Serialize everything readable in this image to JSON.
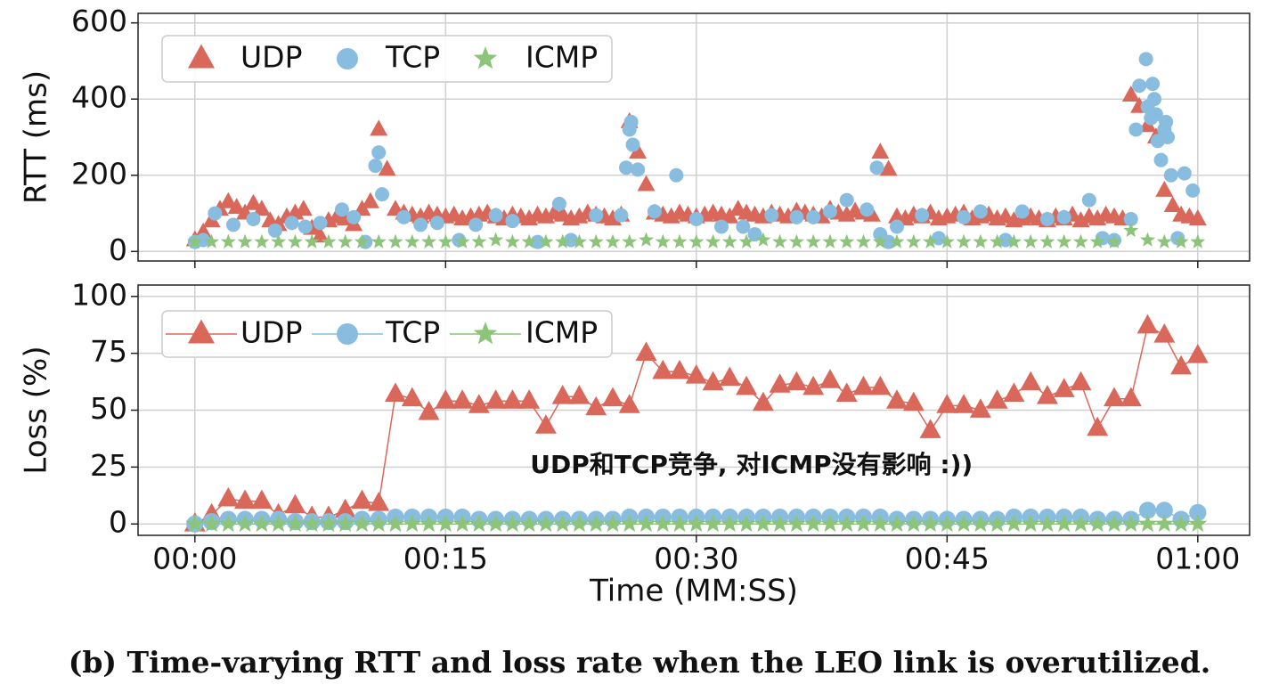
{
  "caption": "(b) Time-varying RTT and loss rate when the LEO link is overutilized.",
  "chart_data": [
    {
      "type": "scatter",
      "ylabel": "RTT (ms)",
      "xlim": [
        -3.4,
        63.1
      ],
      "xticks": [
        0,
        15,
        30,
        45,
        60
      ],
      "ylim": [
        -25,
        625
      ],
      "yticks": [
        0,
        200,
        400,
        600
      ],
      "grid": true,
      "legend": "upper left",
      "series": [
        {
          "name": "UDP",
          "color": "#d9685b",
          "marker": "triangle",
          "x": [
            0,
            0.5,
            1,
            1.5,
            2,
            2.5,
            3,
            3.5,
            4,
            4.5,
            5,
            5.5,
            6,
            6.5,
            7,
            7.5,
            8,
            8.5,
            9,
            9.5,
            10,
            10.5,
            11,
            11.5,
            12,
            12.5,
            13,
            13.5,
            14,
            14.5,
            15,
            15.5,
            16,
            16.5,
            17,
            17.5,
            18,
            18.5,
            19,
            19.5,
            20,
            20.5,
            21,
            21.5,
            22,
            22.5,
            23,
            23.5,
            24,
            24.5,
            25,
            25.5,
            26,
            26.5,
            27,
            27.5,
            28,
            28.5,
            29,
            29.5,
            30,
            30.5,
            31,
            31.5,
            32,
            32.5,
            33,
            33.5,
            34,
            34.5,
            35,
            35.5,
            36,
            36.5,
            37,
            37.5,
            38,
            38.5,
            39,
            39.5,
            40,
            40.5,
            41,
            41.5,
            42,
            42.5,
            43,
            43.5,
            44,
            44.5,
            45,
            45.5,
            46,
            46.5,
            47,
            47.5,
            48,
            48.5,
            49,
            49.5,
            50,
            50.5,
            51,
            51.5,
            52,
            52.5,
            53,
            53.5,
            54,
            54.5,
            55,
            55.5,
            56,
            56.5,
            57,
            57.5,
            58,
            58.5,
            59,
            59.5,
            60
          ],
          "values": [
            30,
            50,
            80,
            110,
            130,
            115,
            100,
            125,
            110,
            80,
            70,
            90,
            100,
            110,
            60,
            40,
            80,
            90,
            85,
            70,
            110,
            130,
            320,
            215,
            110,
            100,
            95,
            90,
            100,
            95,
            90,
            95,
            85,
            90,
            95,
            100,
            90,
            85,
            95,
            90,
            85,
            95,
            90,
            100,
            95,
            85,
            90,
            100,
            95,
            90,
            85,
            95,
            340,
            260,
            175,
            100,
            95,
            90,
            100,
            95,
            90,
            95,
            100,
            95,
            90,
            110,
            100,
            95,
            90,
            100,
            95,
            90,
            105,
            100,
            95,
            90,
            110,
            100,
            95,
            105,
            100,
            95,
            260,
            215,
            90,
            85,
            95,
            90,
            100,
            85,
            90,
            95,
            100,
            85,
            90,
            95,
            85,
            90,
            80,
            85,
            90,
            85,
            80,
            90,
            85,
            95,
            80,
            90,
            85,
            95,
            90,
            85,
            410,
            380,
            330,
            300,
            160,
            120,
            95,
            90,
            85
          ]
        },
        {
          "name": "TCP",
          "color": "#88bde0",
          "marker": "circle",
          "x": [
            0,
            0.5,
            1.2,
            2.3,
            3.5,
            4.8,
            5.8,
            6.6,
            7.5,
            8.8,
            9.5,
            10.2,
            10.8,
            11,
            11.2,
            12.5,
            13.5,
            14.5,
            15.8,
            16.8,
            18,
            19,
            20.5,
            21.8,
            22.5,
            24,
            25.5,
            25.8,
            26,
            26.1,
            26.2,
            26.5,
            27.5,
            28.8,
            30,
            31.5,
            32.8,
            33.5,
            34.5,
            36,
            37,
            38,
            39,
            40.2,
            40.8,
            41,
            41.5,
            42,
            43.5,
            44.5,
            46,
            47,
            48.5,
            49.5,
            51,
            52,
            53.5,
            54.3,
            55,
            56,
            56.3,
            56.5,
            56.9,
            57,
            57.2,
            57.3,
            57.4,
            57.5,
            57.6,
            57.8,
            58,
            58.1,
            58.2,
            58.4,
            58.8,
            59.2,
            59.7
          ],
          "values": [
            25,
            30,
            100,
            70,
            85,
            55,
            75,
            65,
            75,
            110,
            90,
            25,
            225,
            260,
            150,
            90,
            70,
            75,
            30,
            70,
            95,
            80,
            25,
            125,
            30,
            95,
            95,
            220,
            320,
            340,
            280,
            215,
            105,
            200,
            85,
            65,
            65,
            45,
            95,
            90,
            90,
            105,
            135,
            110,
            220,
            45,
            25,
            65,
            95,
            35,
            90,
            105,
            30,
            105,
            85,
            90,
            135,
            35,
            30,
            85,
            320,
            435,
            505,
            380,
            350,
            440,
            400,
            360,
            290,
            240,
            320,
            340,
            300,
            200,
            35,
            205,
            160
          ]
        },
        {
          "name": "ICMP",
          "color": "#8cc47a",
          "marker": "star",
          "x": [
            0,
            1,
            2,
            3,
            4,
            5,
            6,
            7,
            8,
            9,
            10,
            11,
            12,
            13,
            14,
            15,
            16,
            17,
            18,
            19,
            20,
            21,
            22,
            23,
            24,
            25,
            26,
            27,
            28,
            29,
            30,
            31,
            32,
            33,
            34,
            35,
            36,
            37,
            38,
            39,
            40,
            41,
            42,
            43,
            44,
            45,
            46,
            47,
            48,
            49,
            50,
            51,
            52,
            53,
            54,
            55,
            56,
            57,
            58,
            59,
            60
          ],
          "values": [
            25,
            25,
            25,
            25,
            25,
            25,
            25,
            25,
            25,
            25,
            25,
            25,
            25,
            25,
            25,
            25,
            25,
            25,
            30,
            25,
            25,
            25,
            25,
            25,
            25,
            25,
            25,
            30,
            25,
            25,
            25,
            25,
            25,
            25,
            30,
            25,
            25,
            25,
            25,
            25,
            25,
            25,
            25,
            25,
            25,
            25,
            25,
            25,
            25,
            25,
            25,
            25,
            25,
            25,
            25,
            25,
            55,
            30,
            25,
            25,
            25
          ]
        }
      ]
    },
    {
      "type": "line",
      "ylabel": "Loss (%)",
      "xlabel": "Time (MM:SS)",
      "xlim": [
        -3.4,
        63.1
      ],
      "xticks": [
        {
          "value": 0,
          "label": "00:00"
        },
        {
          "value": 15,
          "label": "00:15"
        },
        {
          "value": 30,
          "label": "00:30"
        },
        {
          "value": 45,
          "label": "00:45"
        },
        {
          "value": 60,
          "label": "01:00"
        }
      ],
      "ylim": [
        -5,
        105
      ],
      "yticks": [
        0,
        25,
        50,
        75,
        100
      ],
      "grid": true,
      "legend": "upper left",
      "x": [
        0,
        1,
        2,
        3,
        4,
        5,
        6,
        7,
        8,
        9,
        10,
        11,
        12,
        13,
        14,
        15,
        16,
        17,
        18,
        19,
        20,
        21,
        22,
        23,
        24,
        25,
        26,
        27,
        28,
        29,
        30,
        31,
        32,
        33,
        34,
        35,
        36,
        37,
        38,
        39,
        40,
        41,
        42,
        43,
        44,
        45,
        46,
        47,
        48,
        49,
        50,
        51,
        52,
        53,
        54,
        55,
        56,
        57,
        58,
        59,
        60
      ],
      "series": [
        {
          "name": "UDP",
          "color": "#d9685b",
          "marker": "triangle",
          "values": [
            0,
            4,
            11,
            10,
            10,
            4,
            8,
            3,
            3,
            6,
            10,
            9,
            57,
            55,
            49,
            54,
            54,
            52,
            54,
            54,
            54,
            43,
            56,
            56,
            51,
            55,
            52,
            75,
            67,
            67,
            65,
            62,
            64,
            60,
            53,
            61,
            62,
            60,
            63,
            57,
            60,
            60,
            54,
            53,
            41,
            52,
            52,
            50,
            54,
            57,
            62,
            56,
            59,
            62,
            42,
            55,
            55,
            87,
            83,
            69,
            74
          ]
        },
        {
          "name": "TCP",
          "color": "#88bde0",
          "marker": "circle",
          "values": [
            0,
            1,
            2,
            2,
            2,
            2,
            1,
            1,
            1,
            1,
            2,
            2,
            3,
            3,
            3,
            3,
            3,
            2,
            2,
            2,
            2,
            2,
            2,
            2,
            2,
            2,
            3,
            3,
            3,
            3,
            3,
            3,
            3,
            3,
            3,
            3,
            3,
            3,
            3,
            3,
            3,
            3,
            2,
            2,
            2,
            2,
            2,
            2,
            2,
            3,
            3,
            3,
            3,
            3,
            2,
            2,
            2,
            6,
            6,
            2,
            5
          ]
        },
        {
          "name": "ICMP",
          "color": "#8cc47a",
          "marker": "star",
          "values": [
            0,
            0,
            0,
            0,
            0,
            0,
            0,
            0,
            0,
            0,
            0,
            0,
            0,
            0,
            0,
            0,
            0,
            0,
            0,
            0,
            0,
            0,
            0,
            0,
            0,
            0,
            0,
            0,
            0,
            0,
            0,
            0,
            0,
            0,
            0,
            0,
            0,
            0,
            0,
            0,
            0,
            0,
            0,
            0,
            0,
            0,
            0,
            0,
            0,
            0,
            0,
            0,
            0,
            0,
            0,
            0,
            0,
            0,
            0,
            0,
            0
          ]
        }
      ],
      "annotation": {
        "text": "UDP和TCP竞争, 对ICMP没有影响 :))",
        "x": 33.3,
        "y": 25.5,
        "color": "#e8318a"
      }
    }
  ]
}
